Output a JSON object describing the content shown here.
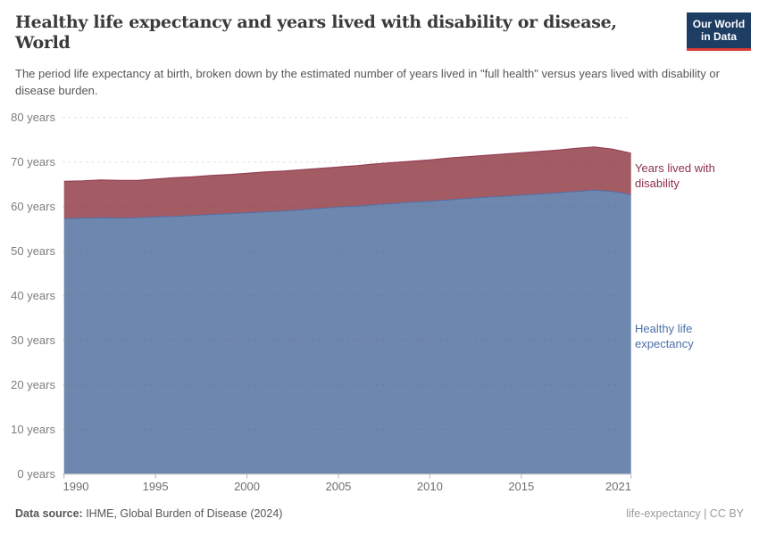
{
  "header": {
    "title_line1": "Healthy life expectancy and years lived with disability or disease,",
    "title_line2": "World",
    "subtitle": "The period life expectancy at birth, broken down by the estimated number of years lived in \"full health\" versus years lived with disability or disease burden.",
    "logo": {
      "line1": "Our World",
      "line2": "in Data",
      "bg_color": "#1d3d63",
      "bar_color": "#d93a34"
    }
  },
  "chart_data": {
    "type": "area",
    "stacked": true,
    "title": "Healthy life expectancy and years lived with disability or disease, World",
    "xlabel": "",
    "ylabel": "years",
    "ylim": [
      0,
      80
    ],
    "xlim": [
      1990,
      2021
    ],
    "grid": "horizontal-dashed",
    "legend_position": "right-of-plot",
    "x": [
      1990,
      1991,
      1992,
      1993,
      1994,
      1995,
      1996,
      1997,
      1998,
      1999,
      2000,
      2001,
      2002,
      2003,
      2004,
      2005,
      2006,
      2007,
      2008,
      2009,
      2010,
      2011,
      2012,
      2013,
      2014,
      2015,
      2016,
      2017,
      2018,
      2019,
      2020,
      2021
    ],
    "series": [
      {
        "name": "Healthy life expectancy",
        "color": "#4c6fa8",
        "fill": "#6e87ae",
        "values": [
          57.3,
          57.4,
          57.5,
          57.4,
          57.5,
          57.7,
          57.8,
          58.0,
          58.2,
          58.4,
          58.6,
          58.8,
          59.0,
          59.3,
          59.6,
          59.9,
          60.1,
          60.4,
          60.7,
          61.0,
          61.2,
          61.5,
          61.8,
          62.1,
          62.3,
          62.6,
          62.8,
          63.1,
          63.4,
          63.7,
          63.4,
          62.7
        ]
      },
      {
        "name": "Years lived with disability",
        "color": "#8d3049",
        "fill": "#a35b64",
        "values": [
          8.4,
          8.4,
          8.5,
          8.5,
          8.4,
          8.5,
          8.7,
          8.7,
          8.8,
          8.8,
          8.9,
          9.0,
          9.0,
          9.0,
          9.0,
          9.0,
          9.1,
          9.2,
          9.2,
          9.2,
          9.3,
          9.4,
          9.4,
          9.4,
          9.5,
          9.5,
          9.6,
          9.6,
          9.7,
          9.7,
          9.5,
          9.3
        ]
      }
    ]
  },
  "y_axis": {
    "tick_values": [
      0,
      10,
      20,
      30,
      40,
      50,
      60,
      70,
      80
    ],
    "tick_labels": [
      "0 years",
      "10 years",
      "20 years",
      "30 years",
      "40 years",
      "50 years",
      "60 years",
      "70 years",
      "80 years"
    ]
  },
  "x_axis": {
    "tick_values": [
      1990,
      1995,
      2000,
      2005,
      2010,
      2015,
      2021
    ],
    "tick_labels": [
      "1990",
      "1995",
      "2000",
      "2005",
      "2010",
      "2015",
      "2021"
    ]
  },
  "legend": {
    "disability_label": "Years lived with disability",
    "healthy_label": "Healthy life expectancy"
  },
  "footer": {
    "source_prefix": "Data source:",
    "source_text": " IHME, Global Burden of Disease (2024)",
    "note_right": "life-expectancy | CC BY"
  }
}
